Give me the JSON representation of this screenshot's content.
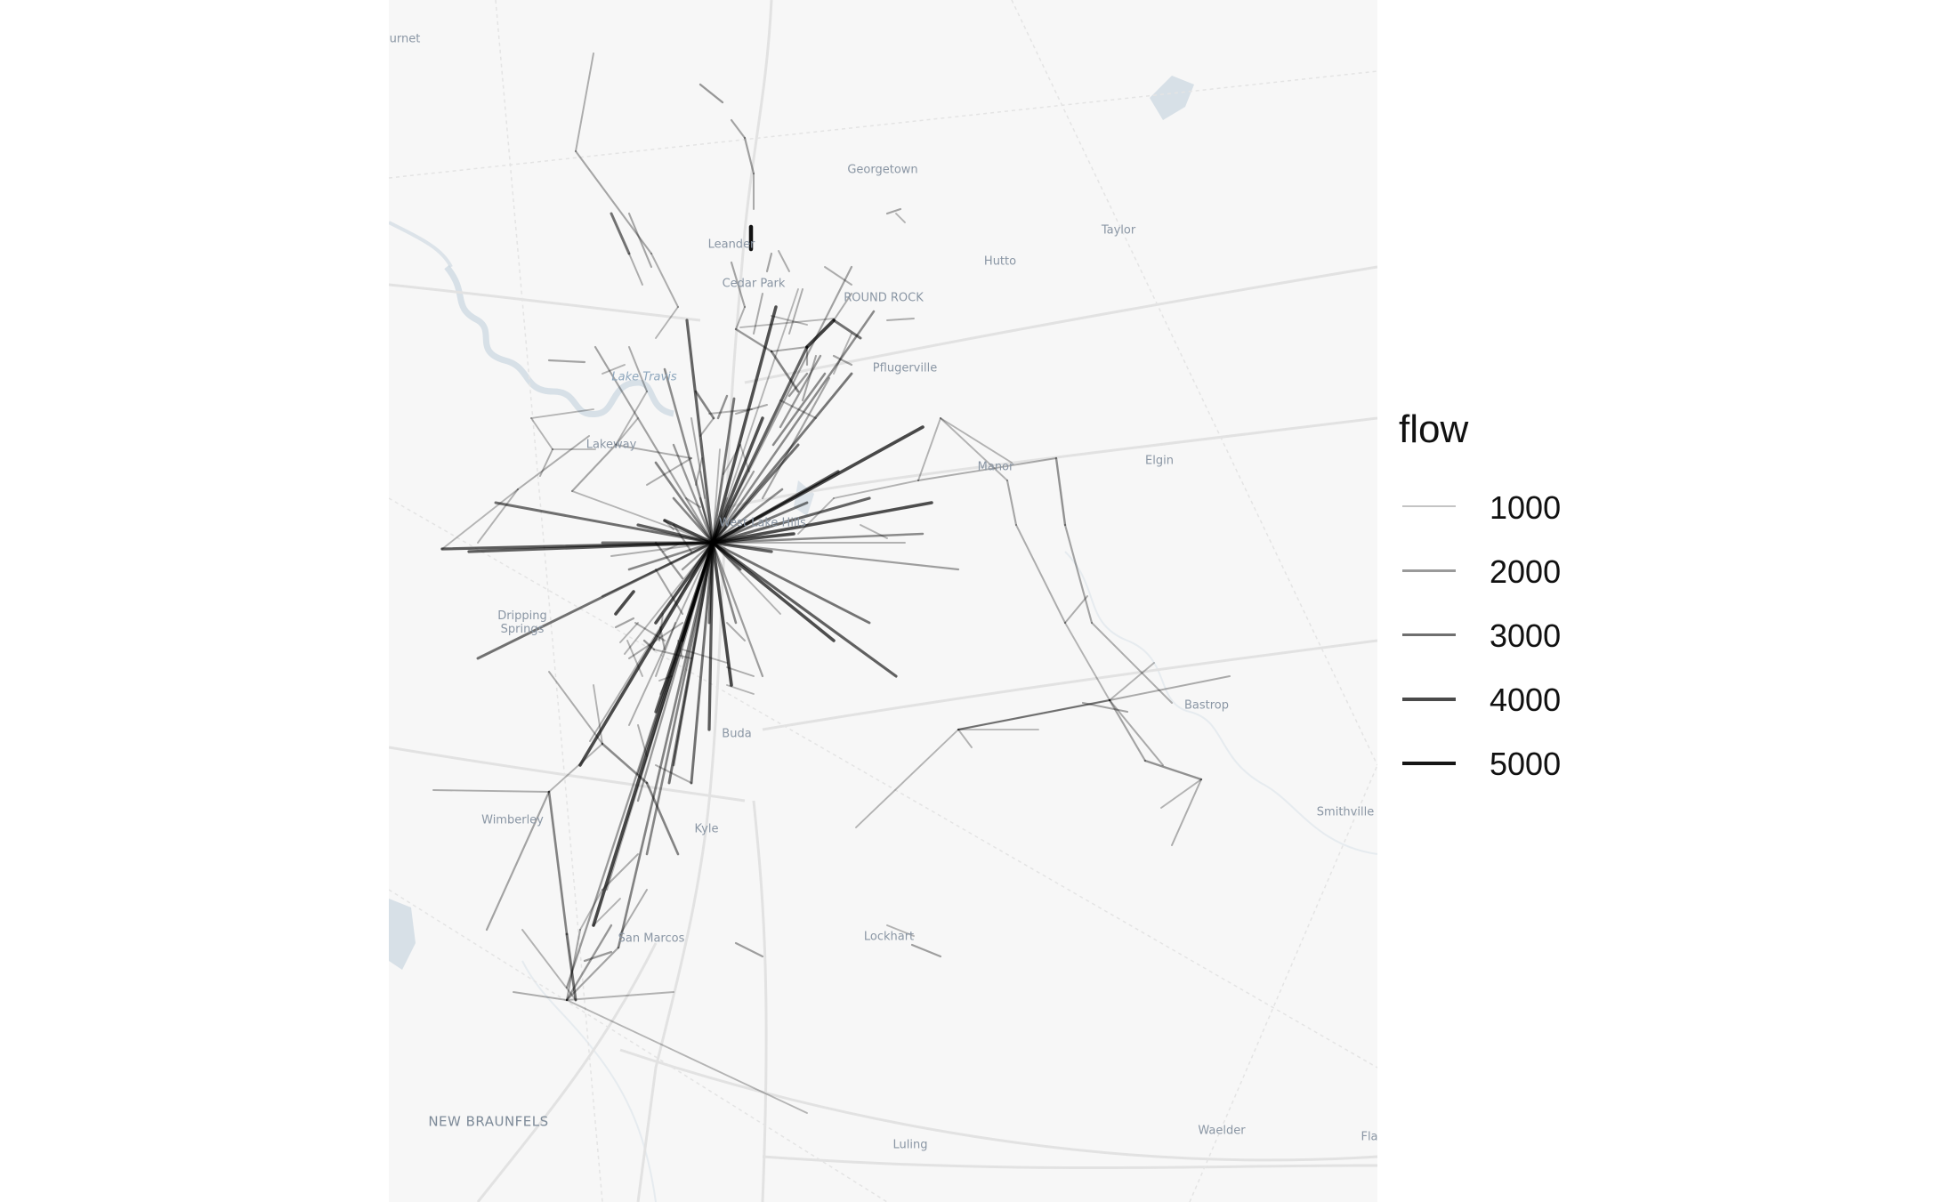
{
  "legend": {
    "title": "flow",
    "keys": [
      {
        "label": "1000",
        "value": 1000,
        "color": "#c4c4c4"
      },
      {
        "label": "2000",
        "value": 2000,
        "color": "#9a9a9a"
      },
      {
        "label": "3000",
        "value": 3000,
        "color": "#6f6f6f"
      },
      {
        "label": "4000",
        "value": 4000,
        "color": "#4a4a4a"
      },
      {
        "label": "5000",
        "value": 5000,
        "color": "#151515"
      }
    ]
  },
  "places": {
    "burnet": "urnet",
    "georgetown": "Georgetown",
    "taylor": "Taylor",
    "leander": "Leander",
    "hutto": "Hutto",
    "cedar_park": "Cedar Park",
    "round_rock": "ROUND ROCK",
    "lake_travis": "Lake Travis",
    "pflugerville": "Pflugerville",
    "lakeway": "Lakeway",
    "elgin": "Elgin",
    "manor": "Manor",
    "west_lake_hills": "West Lake Hills",
    "dripping_springs": "Dripping Springs",
    "bastrop": "Bastrop",
    "buda": "Buda",
    "wimberley": "Wimberley",
    "smithville": "Smithville",
    "kyle": "Kyle",
    "lockhart": "Lockhart",
    "san_marcos": "San Marcos",
    "new_braunfels": "NEW BRAUNFELS",
    "luling": "Luling",
    "waelder": "Waelder",
    "flatonia": "Fla"
  },
  "colors": {
    "map_background": "#f7f7f7",
    "water": "#c9d5df",
    "roads": "#e2e2e2",
    "flow_line": "#000000"
  }
}
